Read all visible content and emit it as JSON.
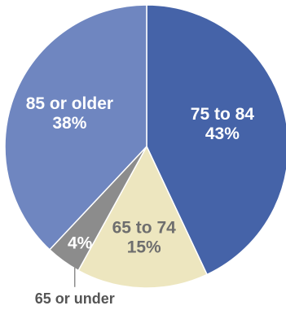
{
  "chart_data": {
    "type": "pie",
    "slices": [
      {
        "label": "75 to 84",
        "value": 43,
        "value_label": "43%",
        "color": "#4563a8",
        "text_color": "#ffffff"
      },
      {
        "label": "65 to 74",
        "value": 15,
        "value_label": "15%",
        "color": "#ede6bf",
        "text_color": "#6e6e6e"
      },
      {
        "label": "65 or under",
        "value": 4,
        "value_label": "4%",
        "color": "#8c8c8c",
        "text_color": "#ffffff"
      },
      {
        "label": "85 or older",
        "value": 38,
        "value_label": "38%",
        "color": "#6f86c0",
        "text_color": "#ffffff"
      }
    ],
    "start": "12 o'clock",
    "direction": "clockwise",
    "legend": "none"
  }
}
